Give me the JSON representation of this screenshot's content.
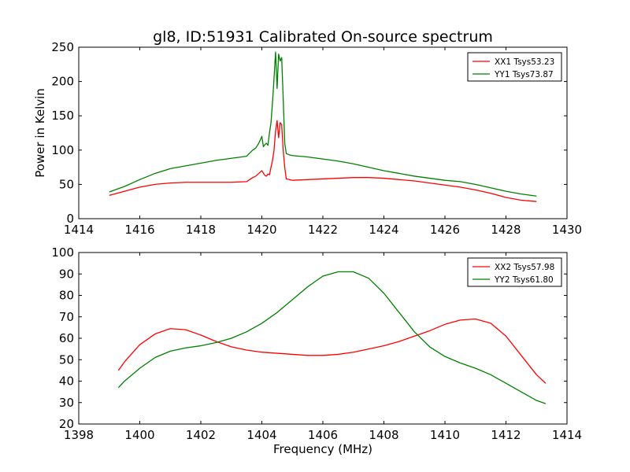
{
  "figure": {
    "title": "gl8, ID:51931 Calibrated On-source spectrum"
  },
  "colors": {
    "xx": "#ff0000",
    "yy": "#008000"
  },
  "chart_data": [
    {
      "type": "line",
      "title": "gl8, ID:51931 Calibrated On-source spectrum",
      "xlabel": "",
      "ylabel": "Power in Kelvin",
      "xlim": [
        1414,
        1430
      ],
      "ylim": [
        0,
        250
      ],
      "xticks": [
        1414,
        1416,
        1418,
        1420,
        1422,
        1424,
        1426,
        1428,
        1430
      ],
      "yticks": [
        0,
        50,
        100,
        150,
        200,
        250
      ],
      "legend_position": "top-right",
      "grid": false,
      "series": [
        {
          "name": "XX1 Tsys53.23",
          "color": "#ff0000",
          "x": [
            1415.0,
            1415.5,
            1416.0,
            1416.5,
            1417.0,
            1417.5,
            1418.0,
            1418.5,
            1419.0,
            1419.5,
            1419.7,
            1419.8,
            1419.9,
            1420.0,
            1420.1,
            1420.15,
            1420.2,
            1420.25,
            1420.3,
            1420.35,
            1420.4,
            1420.45,
            1420.5,
            1420.55,
            1420.6,
            1420.65,
            1420.7,
            1420.75,
            1420.8,
            1420.9,
            1421.0,
            1421.5,
            1422.0,
            1422.5,
            1423.0,
            1423.5,
            1424.0,
            1424.5,
            1425.0,
            1425.5,
            1426.0,
            1426.5,
            1427.0,
            1427.5,
            1428.0,
            1428.5,
            1429.0
          ],
          "y": [
            34,
            40,
            46,
            50,
            52,
            53,
            53,
            53,
            53,
            54,
            60,
            62,
            66,
            70,
            63,
            62,
            65,
            64,
            75,
            85,
            100,
            128,
            143,
            118,
            140,
            137,
            100,
            75,
            58,
            57,
            56,
            57,
            58,
            59,
            60,
            60,
            59,
            57,
            55,
            52,
            49,
            46,
            42,
            37,
            31,
            27,
            25
          ]
        },
        {
          "name": "YY1 Tsys73.87",
          "color": "#008000",
          "x": [
            1415.0,
            1415.5,
            1416.0,
            1416.5,
            1417.0,
            1417.5,
            1418.0,
            1418.5,
            1419.0,
            1419.5,
            1419.7,
            1419.8,
            1419.9,
            1420.0,
            1420.05,
            1420.1,
            1420.15,
            1420.2,
            1420.25,
            1420.3,
            1420.35,
            1420.4,
            1420.45,
            1420.5,
            1420.55,
            1420.6,
            1420.65,
            1420.7,
            1420.75,
            1420.8,
            1420.9,
            1421.0,
            1421.5,
            1422.0,
            1422.5,
            1423.0,
            1423.5,
            1424.0,
            1424.5,
            1425.0,
            1425.5,
            1426.0,
            1426.5,
            1427.0,
            1427.5,
            1428.0,
            1428.5,
            1429.0
          ],
          "y": [
            39,
            47,
            57,
            66,
            73,
            77,
            81,
            85,
            88,
            91,
            100,
            103,
            110,
            120,
            105,
            108,
            110,
            107,
            125,
            140,
            170,
            205,
            243,
            190,
            240,
            230,
            235,
            175,
            110,
            95,
            93,
            92,
            90,
            87,
            84,
            80,
            75,
            70,
            66,
            62,
            59,
            56,
            54,
            50,
            45,
            40,
            36,
            33
          ]
        }
      ]
    },
    {
      "type": "line",
      "title": "",
      "xlabel": "Frequency (MHz)",
      "ylabel": "",
      "xlim": [
        1398,
        1414
      ],
      "ylim": [
        20,
        100
      ],
      "xticks": [
        1398,
        1400,
        1402,
        1404,
        1406,
        1408,
        1410,
        1412,
        1414
      ],
      "yticks": [
        20,
        30,
        40,
        50,
        60,
        70,
        80,
        90,
        100
      ],
      "legend_position": "top-right",
      "grid": false,
      "series": [
        {
          "name": "XX2 Tsys57.98",
          "color": "#ff0000",
          "x": [
            1399.3,
            1399.5,
            1400.0,
            1400.5,
            1401.0,
            1401.5,
            1402.0,
            1402.5,
            1403.0,
            1403.5,
            1404.0,
            1404.5,
            1405.0,
            1405.5,
            1406.0,
            1406.5,
            1407.0,
            1407.5,
            1408.0,
            1408.5,
            1409.0,
            1409.5,
            1410.0,
            1410.5,
            1411.0,
            1411.5,
            1412.0,
            1412.5,
            1413.0,
            1413.3
          ],
          "y": [
            45,
            49,
            57,
            62,
            64.5,
            64,
            61.5,
            58.5,
            56,
            54.5,
            53.5,
            53,
            52.5,
            52,
            52,
            52.5,
            53.5,
            55,
            56.5,
            58.5,
            61,
            63.5,
            66.5,
            68.5,
            69,
            67,
            61,
            52,
            43,
            39
          ]
        },
        {
          "name": "YY2 Tsys61.80",
          "color": "#008000",
          "x": [
            1399.3,
            1399.5,
            1400.0,
            1400.5,
            1401.0,
            1401.5,
            1402.0,
            1402.5,
            1403.0,
            1403.5,
            1404.0,
            1404.5,
            1405.0,
            1405.5,
            1406.0,
            1406.5,
            1407.0,
            1407.5,
            1408.0,
            1408.5,
            1409.0,
            1409.5,
            1410.0,
            1410.5,
            1411.0,
            1411.5,
            1412.0,
            1412.5,
            1413.0,
            1413.3
          ],
          "y": [
            37,
            40,
            46,
            51,
            54,
            55.5,
            56.5,
            58,
            60,
            63,
            67,
            72,
            78,
            84,
            89,
            91,
            91,
            88,
            81,
            72,
            63,
            56,
            51.5,
            48.5,
            46,
            43,
            39,
            35,
            31,
            29.5
          ]
        }
      ]
    }
  ]
}
